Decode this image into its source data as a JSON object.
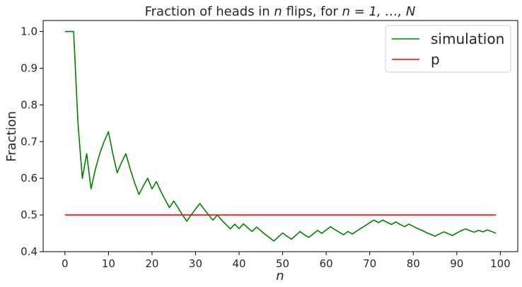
{
  "chart_data": {
    "type": "line",
    "title_prefix": "Fraction of heads in ",
    "title_var": "n",
    "title_mid": " flips, for ",
    "title_math": "n = 1, …, N",
    "xlabel": "n",
    "ylabel": "Fraction",
    "xlim": [
      -5,
      104
    ],
    "ylim": [
      0.4,
      1.03
    ],
    "xticks": [
      0,
      10,
      20,
      30,
      40,
      50,
      60,
      70,
      80,
      90,
      100
    ],
    "yticks": [
      0.4,
      0.5,
      0.6,
      0.7,
      0.8,
      0.9,
      1.0
    ],
    "ytick_labels": [
      "0.4",
      "0.5",
      "0.6",
      "0.7",
      "0.8",
      "0.9",
      "1.0"
    ],
    "grid": false,
    "legend_position": "top-right",
    "series": [
      {
        "name": "simulation",
        "color": "#008000",
        "x": [
          0,
          1,
          2,
          3,
          4,
          5,
          6,
          7,
          8,
          9,
          10,
          11,
          12,
          13,
          14,
          15,
          16,
          17,
          18,
          19,
          20,
          21,
          22,
          23,
          24,
          25,
          26,
          27,
          28,
          29,
          30,
          31,
          32,
          33,
          34,
          35,
          36,
          37,
          38,
          39,
          40,
          41,
          42,
          43,
          44,
          45,
          46,
          47,
          48,
          49,
          50,
          51,
          52,
          53,
          54,
          55,
          56,
          57,
          58,
          59,
          60,
          61,
          62,
          63,
          64,
          65,
          66,
          67,
          68,
          69,
          70,
          71,
          72,
          73,
          74,
          75,
          76,
          77,
          78,
          79,
          80,
          81,
          82,
          83,
          84,
          85,
          86,
          87,
          88,
          89,
          90,
          91,
          92,
          93,
          94,
          95,
          96,
          97,
          98,
          99
        ],
        "values": [
          1.0,
          1.0,
          1.0,
          0.75,
          0.6,
          0.667,
          0.571,
          0.625,
          0.667,
          0.7,
          0.727,
          0.667,
          0.615,
          0.643,
          0.667,
          0.625,
          0.588,
          0.556,
          0.579,
          0.6,
          0.571,
          0.591,
          0.565,
          0.542,
          0.52,
          0.538,
          0.519,
          0.5,
          0.483,
          0.5,
          0.516,
          0.531,
          0.515,
          0.5,
          0.486,
          0.5,
          0.486,
          0.474,
          0.462,
          0.475,
          0.463,
          0.476,
          0.465,
          0.455,
          0.467,
          0.457,
          0.447,
          0.438,
          0.429,
          0.44,
          0.451,
          0.442,
          0.434,
          0.444,
          0.455,
          0.446,
          0.439,
          0.448,
          0.458,
          0.45,
          0.459,
          0.468,
          0.46,
          0.453,
          0.446,
          0.455,
          0.448,
          0.456,
          0.464,
          0.471,
          0.479,
          0.486,
          0.479,
          0.486,
          0.48,
          0.474,
          0.481,
          0.474,
          0.468,
          0.475,
          0.469,
          0.463,
          0.458,
          0.452,
          0.447,
          0.442,
          0.448,
          0.454,
          0.449,
          0.444,
          0.451,
          0.457,
          0.462,
          0.457,
          0.453,
          0.458,
          0.454,
          0.459,
          0.455,
          0.45
        ]
      },
      {
        "name": "p",
        "color": "#ff0000",
        "x": [
          0,
          99
        ],
        "values": [
          0.5,
          0.5
        ]
      }
    ]
  }
}
